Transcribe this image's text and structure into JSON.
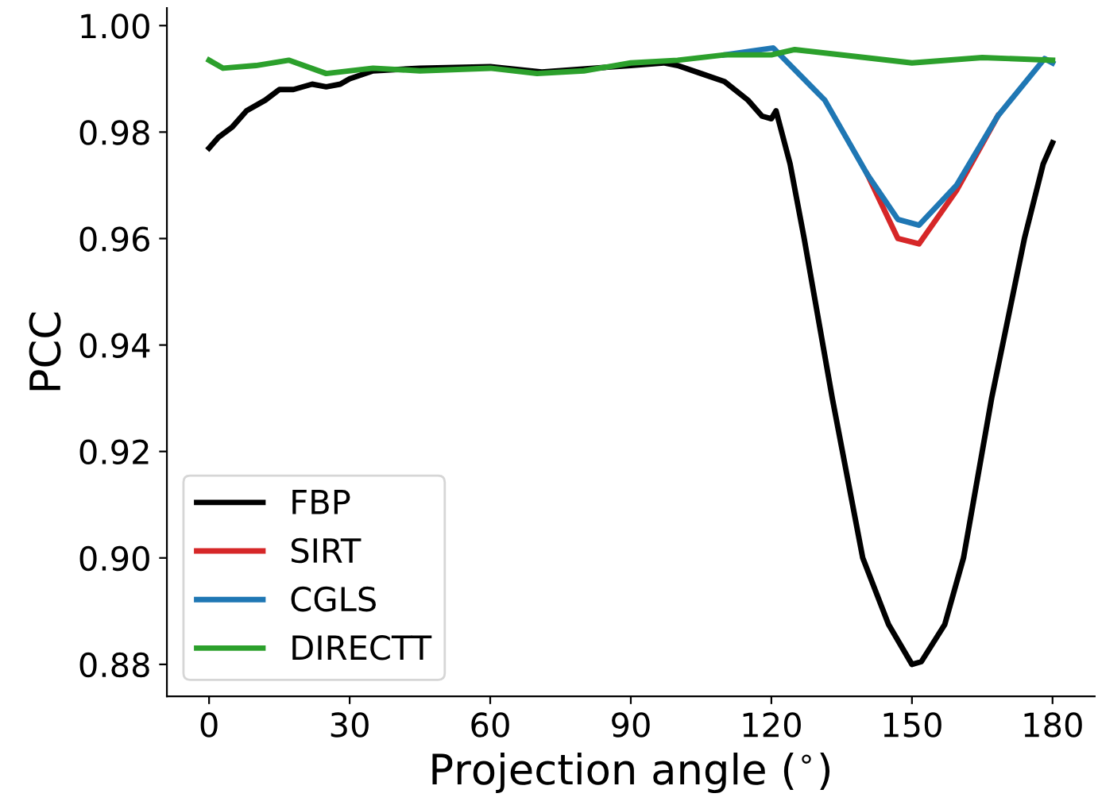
{
  "chart_data": {
    "type": "line",
    "xlabel": "Projection angle ($^{∘}$)",
    "ylabel": "PCC",
    "xlim": [
      -9,
      189
    ],
    "xticks": [
      0,
      30,
      60,
      90,
      120,
      150,
      180
    ],
    "ylim": [
      0.874,
      1.0033
    ],
    "yticks": [
      {
        "value": 0.88,
        "label": "0.88"
      },
      {
        "value": 0.9,
        "label": "0.90"
      },
      {
        "value": 0.92,
        "label": "0.92"
      },
      {
        "value": 0.94,
        "label": "0.94"
      },
      {
        "value": 0.96,
        "label": "0.96"
      },
      {
        "value": 0.98,
        "label": "0.98"
      },
      {
        "value": 1.0,
        "label": "1.00"
      }
    ],
    "grid": false,
    "legend": "bottom left",
    "marker": "none",
    "line_style": "solid",
    "series": [
      {
        "name": "FBP",
        "color": "#000000",
        "x": [
          0,
          2,
          5,
          8,
          12,
          15,
          18,
          22,
          25,
          28,
          30,
          35,
          45,
          60,
          71,
          90,
          97,
          100,
          105,
          110,
          115,
          118,
          120,
          121,
          124,
          127,
          133,
          139.5,
          145,
          150,
          152,
          157,
          161,
          167,
          174,
          178,
          180
        ],
        "values": [
          0.977,
          0.979,
          0.981,
          0.984,
          0.986,
          0.988,
          0.988,
          0.989,
          0.9885,
          0.989,
          0.99,
          0.9915,
          0.992,
          0.9923,
          0.9913,
          0.9925,
          0.993,
          0.9925,
          0.991,
          0.9895,
          0.986,
          0.983,
          0.9825,
          0.984,
          0.974,
          0.96,
          0.93,
          0.9,
          0.8875,
          0.88,
          0.8805,
          0.8875,
          0.9,
          0.93,
          0.96,
          0.974,
          0.978
        ]
      },
      {
        "name": "SIRT",
        "color": "#d62728",
        "x": [
          140.5,
          147,
          151.5,
          159.5,
          168.3
        ],
        "values": [
          0.972,
          0.96,
          0.959,
          0.969,
          0.983
        ]
      },
      {
        "name": "CGLS",
        "color": "#1f77b4",
        "x": [
          110,
          120.4,
          131.4,
          140.5,
          147,
          151.5,
          159.5,
          168.3,
          178.3,
          180
        ],
        "values": [
          0.9945,
          0.9958,
          0.986,
          0.972,
          0.9636,
          0.9625,
          0.97,
          0.983,
          0.9938,
          0.993
        ]
      },
      {
        "name": "DIRECTT",
        "color": "#2ca02c",
        "x": [
          0,
          3,
          10,
          17,
          25,
          35,
          45,
          60,
          70,
          80,
          90,
          100,
          110,
          120,
          125,
          140,
          150,
          165,
          180
        ],
        "values": [
          0.9935,
          0.992,
          0.9925,
          0.9935,
          0.991,
          0.992,
          0.9915,
          0.992,
          0.991,
          0.9915,
          0.993,
          0.9935,
          0.9945,
          0.9945,
          0.9955,
          0.994,
          0.993,
          0.994,
          0.9935
        ]
      }
    ]
  }
}
